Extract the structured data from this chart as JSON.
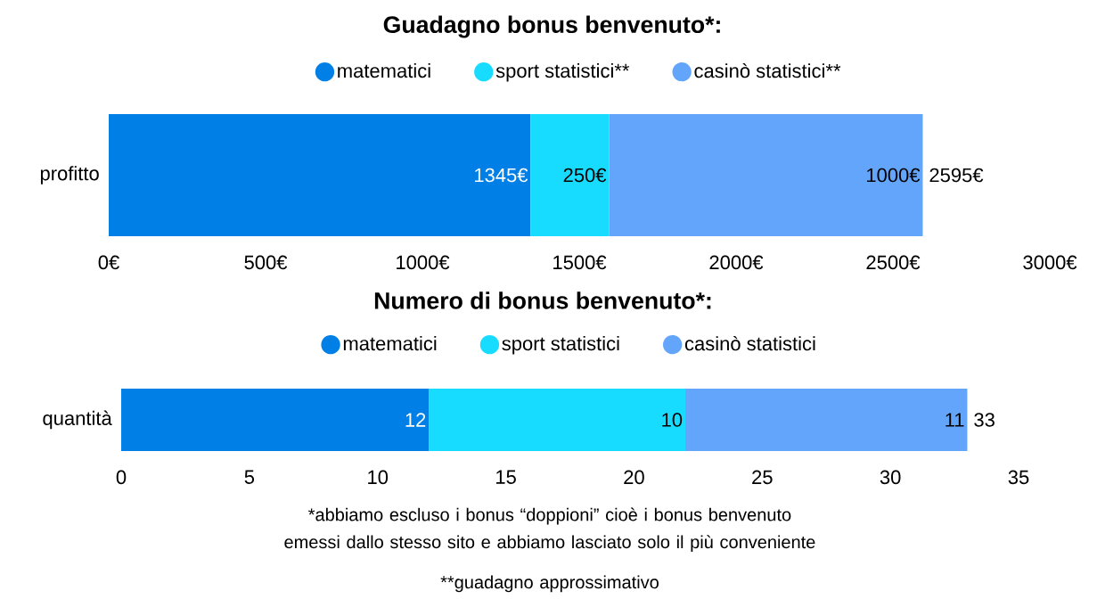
{
  "chart_data": [
    {
      "type": "bar",
      "orientation": "horizontal",
      "stacked": true,
      "title": "Guadagno bonus benvenuto*:",
      "legend": "top",
      "categories": [
        "profitto"
      ],
      "series": [
        {
          "name": "matematici",
          "color": "#0080e6",
          "values": [
            1345
          ],
          "value_labels": [
            "1345€"
          ]
        },
        {
          "name": "sport statistici**",
          "color": "#17dcff",
          "values": [
            250
          ],
          "value_labels": [
            "250€"
          ]
        },
        {
          "name": "casinò statistici**",
          "color": "#64a5fc",
          "values": [
            1000
          ],
          "value_labels": [
            "1000€"
          ]
        }
      ],
      "totals": [
        "2595€"
      ],
      "xlim": [
        0,
        3000
      ],
      "xticks": [
        {
          "value": 0,
          "label": "0€"
        },
        {
          "value": 500,
          "label": "500€"
        },
        {
          "value": 1000,
          "label": "1000€"
        },
        {
          "value": 1500,
          "label": "1500€"
        },
        {
          "value": 2000,
          "label": "2000€"
        },
        {
          "value": 2500,
          "label": "2500€"
        },
        {
          "value": 3000,
          "label": "3000€"
        }
      ]
    },
    {
      "type": "bar",
      "orientation": "horizontal",
      "stacked": true,
      "title": "Numero di bonus benvenuto*:",
      "legend": "top",
      "categories": [
        "quantità"
      ],
      "data_labels": true,
      "series": [
        {
          "name": "matematici",
          "color": "#0080e6",
          "values": [
            12
          ]
        },
        {
          "name": "sport statistici",
          "color": "#17dcff",
          "values": [
            10
          ]
        },
        {
          "name": "casinò statistici",
          "color": "#64a5fc",
          "values": [
            11
          ]
        }
      ],
      "totals": [
        "33"
      ],
      "xlim": [
        0,
        35
      ],
      "xticks": [
        0,
        5,
        10,
        15,
        20,
        25,
        30,
        35
      ],
      "annotations": [
        "*abbiamo escluso i bonus “doppioni” cioè i bonus benvenuto emessi dallo stesso sito e abbiamo lasciato solo il più conveniente",
        "**guadagno approssimativo"
      ]
    }
  ]
}
